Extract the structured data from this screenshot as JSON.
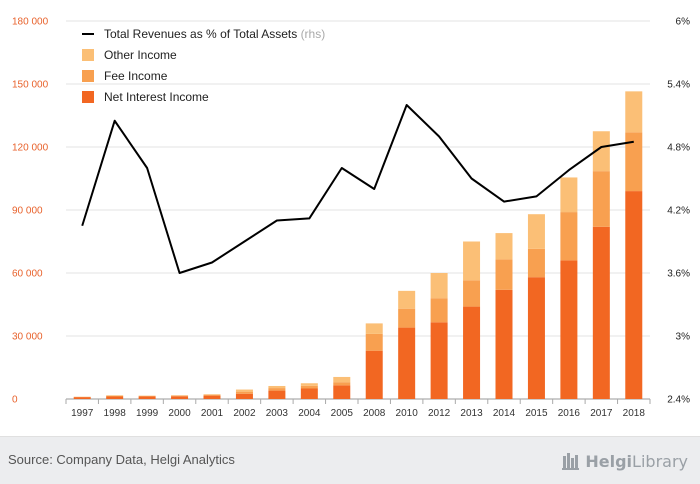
{
  "chart_data": {
    "type": "bar",
    "stacked": true,
    "categories": [
      "1997",
      "1998",
      "1999",
      "2000",
      "2001",
      "2002",
      "2003",
      "2004",
      "2005",
      "2008",
      "2010",
      "2012",
      "2013",
      "2014",
      "2015",
      "2016",
      "2017",
      "2018"
    ],
    "series": [
      {
        "name": "Net Interest Income",
        "color": "#f26722",
        "values": [
          900,
          1200,
          1200,
          1300,
          1600,
          2500,
          4000,
          5000,
          6500,
          23000,
          34000,
          36500,
          44000,
          52000,
          58000,
          66000,
          82000,
          99000
        ]
      },
      {
        "name": "Fee Income",
        "color": "#f8a050",
        "values": [
          100,
          300,
          200,
          300,
          400,
          1000,
          1200,
          1300,
          1500,
          8000,
          9000,
          11500,
          12500,
          14500,
          13500,
          23000,
          26500,
          28000
        ]
      },
      {
        "name": "Other Income",
        "color": "#fbbf76",
        "values": [
          100,
          300,
          200,
          200,
          300,
          1000,
          1000,
          1200,
          2500,
          5000,
          8500,
          12000,
          18500,
          12500,
          16500,
          16500,
          19000,
          19500
        ]
      }
    ],
    "line_series": {
      "name": "Total Revenues as % of Total Assets",
      "name_suffix": "(rhs)",
      "color": "#000000",
      "axis": "right",
      "values": [
        4.05,
        5.05,
        4.6,
        3.6,
        3.7,
        3.9,
        4.1,
        4.12,
        4.6,
        4.4,
        5.2,
        4.9,
        4.5,
        4.28,
        4.33,
        4.58,
        4.8,
        4.85
      ]
    },
    "ylim": [
      0,
      180000
    ],
    "y_ticks": [
      0,
      30000,
      60000,
      90000,
      120000,
      150000,
      180000
    ],
    "y_tick_labels": [
      "0",
      "30 000",
      "60 000",
      "90 000",
      "120 000",
      "150 000",
      "180 000"
    ],
    "y2lim": [
      2.4,
      6.0
    ],
    "y2_ticks": [
      2.4,
      3.0,
      3.6,
      4.2,
      4.8,
      5.4,
      6.0
    ],
    "y2_tick_labels": [
      "2.4%",
      "3%",
      "3.6%",
      "4.2%",
      "4.8%",
      "5.4%",
      "6%"
    ],
    "grid": true,
    "legend_position": "top-left",
    "title": "",
    "xlabel": "",
    "ylabel": ""
  },
  "footer": {
    "source": "Source: Company Data, Helgi Analytics",
    "logo_text_bold": "Helgi",
    "logo_text_light": "Library",
    "logo_icon": "helgi-library-icon"
  }
}
